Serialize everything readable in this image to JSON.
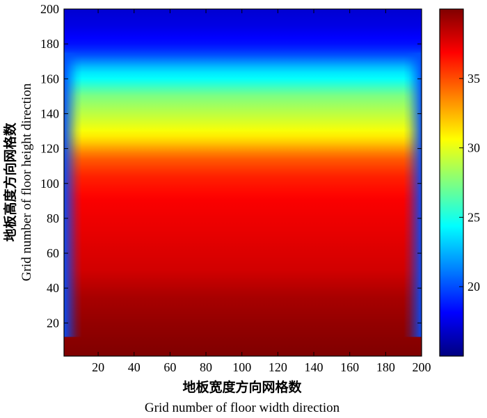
{
  "chart_data": {
    "type": "heatmap",
    "title": "",
    "xlabel_cn": "地板宽度方向网格数",
    "xlabel": "Grid number of floor width direction",
    "ylabel_cn": "地板高度方向网格数",
    "ylabel": "Grid number of floor height direction",
    "xlim": [
      1,
      200
    ],
    "ylim": [
      1,
      200
    ],
    "xticks": [
      "20",
      "40",
      "60",
      "80",
      "100",
      "120",
      "140",
      "160",
      "180",
      "200"
    ],
    "yticks": [
      "20",
      "40",
      "60",
      "80",
      "100",
      "120",
      "140",
      "160",
      "180",
      "200"
    ],
    "colorbar": {
      "ticks": [
        "20",
        "25",
        "30",
        "35"
      ],
      "range": [
        15,
        40
      ],
      "colormap": "jet"
    },
    "profile_along_height": {
      "y": [
        1,
        20,
        35,
        50,
        70,
        90,
        105,
        115,
        125,
        130,
        140,
        150,
        160,
        165,
        170,
        175,
        180,
        190,
        200
      ],
      "value": [
        40,
        39.5,
        39,
        38,
        37.5,
        37,
        36,
        34.5,
        31.5,
        30.5,
        29,
        27.5,
        24.5,
        23.5,
        21.5,
        19.5,
        18.5,
        17.5,
        17
      ]
    },
    "edge_boundary_value": 20,
    "edge_transition_width": 10
  }
}
